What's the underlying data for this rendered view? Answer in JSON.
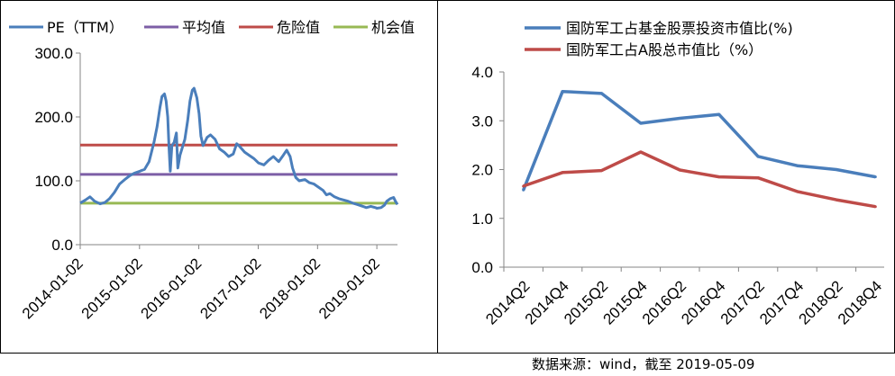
{
  "colors": {
    "pe": "#4A7EBB",
    "avg": "#7D5FA6",
    "danger": "#BE4B48",
    "opportunity": "#98B954",
    "fund": "#4A7EBB",
    "ashare": "#BE4B48",
    "frame": "#000000"
  },
  "source_note": "数据来源：wind，截至 2019-05-09",
  "chart_data": [
    {
      "type": "line",
      "legend": [
        "PE（TTM）",
        "平均值",
        "危险值",
        "机会值"
      ],
      "legend_placement": "top",
      "ylim": [
        0,
        300
      ],
      "yticks": [
        "0.0",
        "100.0",
        "200.0",
        "300.0"
      ],
      "xticks": [
        "2014-01-02",
        "2015-01-02",
        "2016-01-02",
        "2017-01-02",
        "2018-01-02",
        "2019-01-02"
      ],
      "xrange": [
        "2014-01-02",
        "2019-05-09"
      ],
      "grid": false,
      "series": [
        {
          "name": "PE（TTM）",
          "points": [
            [
              "2014-01-02",
              65
            ],
            [
              "2014-02-03",
              70
            ],
            [
              "2014-03-03",
              75
            ],
            [
              "2014-04-01",
              68
            ],
            [
              "2014-05-05",
              64
            ],
            [
              "2014-06-03",
              66
            ],
            [
              "2014-07-01",
              72
            ],
            [
              "2014-08-01",
              82
            ],
            [
              "2014-09-01",
              95
            ],
            [
              "2014-10-08",
              103
            ],
            [
              "2014-11-03",
              108
            ],
            [
              "2014-12-01",
              112
            ],
            [
              "2015-01-05",
              115
            ],
            [
              "2015-02-02",
              118
            ],
            [
              "2015-03-02",
              130
            ],
            [
              "2015-04-01",
              160
            ],
            [
              "2015-04-20",
              185
            ],
            [
              "2015-05-08",
              215
            ],
            [
              "2015-05-20",
              232
            ],
            [
              "2015-06-05",
              236
            ],
            [
              "2015-06-15",
              225
            ],
            [
              "2015-06-25",
              200
            ],
            [
              "2015-07-03",
              150
            ],
            [
              "2015-07-10",
              115
            ],
            [
              "2015-07-20",
              155
            ],
            [
              "2015-08-03",
              160
            ],
            [
              "2015-08-17",
              175
            ],
            [
              "2015-08-26",
              120
            ],
            [
              "2015-09-08",
              140
            ],
            [
              "2015-10-08",
              165
            ],
            [
              "2015-10-26",
              195
            ],
            [
              "2015-11-09",
              225
            ],
            [
              "2015-11-23",
              242
            ],
            [
              "2015-12-04",
              245
            ],
            [
              "2015-12-21",
              230
            ],
            [
              "2016-01-04",
              205
            ],
            [
              "2016-01-15",
              170
            ],
            [
              "2016-01-28",
              155
            ],
            [
              "2016-02-22",
              168
            ],
            [
              "2016-03-14",
              172
            ],
            [
              "2016-04-11",
              165
            ],
            [
              "2016-05-09",
              150
            ],
            [
              "2016-06-06",
              145
            ],
            [
              "2016-07-04",
              138
            ],
            [
              "2016-08-01",
              142
            ],
            [
              "2016-08-22",
              158
            ],
            [
              "2016-09-05",
              155
            ],
            [
              "2016-10-10",
              145
            ],
            [
              "2016-11-07",
              140
            ],
            [
              "2016-12-05",
              135
            ],
            [
              "2017-01-03",
              128
            ],
            [
              "2017-02-06",
              125
            ],
            [
              "2017-03-06",
              132
            ],
            [
              "2017-04-05",
              138
            ],
            [
              "2017-05-08",
              130
            ],
            [
              "2017-06-05",
              140
            ],
            [
              "2017-06-26",
              148
            ],
            [
              "2017-07-17",
              138
            ],
            [
              "2017-08-01",
              120
            ],
            [
              "2017-08-21",
              105
            ],
            [
              "2017-09-11",
              100
            ],
            [
              "2017-10-16",
              102
            ],
            [
              "2017-11-13",
              97
            ],
            [
              "2017-12-11",
              95
            ],
            [
              "2018-01-08",
              90
            ],
            [
              "2018-02-05",
              85
            ],
            [
              "2018-02-26",
              78
            ],
            [
              "2018-03-19",
              80
            ],
            [
              "2018-04-16",
              75
            ],
            [
              "2018-05-14",
              72
            ],
            [
              "2018-06-11",
              70
            ],
            [
              "2018-07-09",
              68
            ],
            [
              "2018-08-06",
              65
            ],
            [
              "2018-09-03",
              63
            ],
            [
              "2018-10-08",
              60
            ],
            [
              "2018-10-29",
              58
            ],
            [
              "2018-11-26",
              60
            ],
            [
              "2018-12-24",
              58
            ],
            [
              "2019-01-02",
              57
            ],
            [
              "2019-01-28",
              58
            ],
            [
              "2019-02-18",
              62
            ],
            [
              "2019-03-04",
              68
            ],
            [
              "2019-03-25",
              72
            ],
            [
              "2019-04-15",
              74
            ],
            [
              "2019-04-26",
              68
            ],
            [
              "2019-05-09",
              63
            ]
          ]
        },
        {
          "name": "平均值",
          "value": 110
        },
        {
          "name": "危险值",
          "value": 156
        },
        {
          "name": "机会值",
          "value": 65
        }
      ]
    },
    {
      "type": "line",
      "legend": [
        "国防军工占基金股票投资市值比(%)",
        "国防军工占A股总市值比（%）"
      ],
      "legend_placement": "top",
      "ylim": [
        0,
        4
      ],
      "yticks": [
        "0.0",
        "1.0",
        "2.0",
        "3.0",
        "4.0"
      ],
      "categories": [
        "2014Q2",
        "2014Q4",
        "2015Q2",
        "2015Q4",
        "2016Q2",
        "2016Q4",
        "2017Q2",
        "2017Q4",
        "2018Q2",
        "2018Q4"
      ],
      "grid": false,
      "series": [
        {
          "name": "国防军工占基金股票投资市值比(%)",
          "values": [
            1.58,
            3.6,
            3.56,
            2.95,
            3.05,
            3.13,
            2.27,
            2.08,
            2.0,
            1.85
          ]
        },
        {
          "name": "国防军工占A股总市值比（%）",
          "values": [
            1.66,
            1.94,
            1.98,
            2.36,
            1.99,
            1.85,
            1.83,
            1.55,
            1.38,
            1.24
          ]
        }
      ]
    }
  ]
}
